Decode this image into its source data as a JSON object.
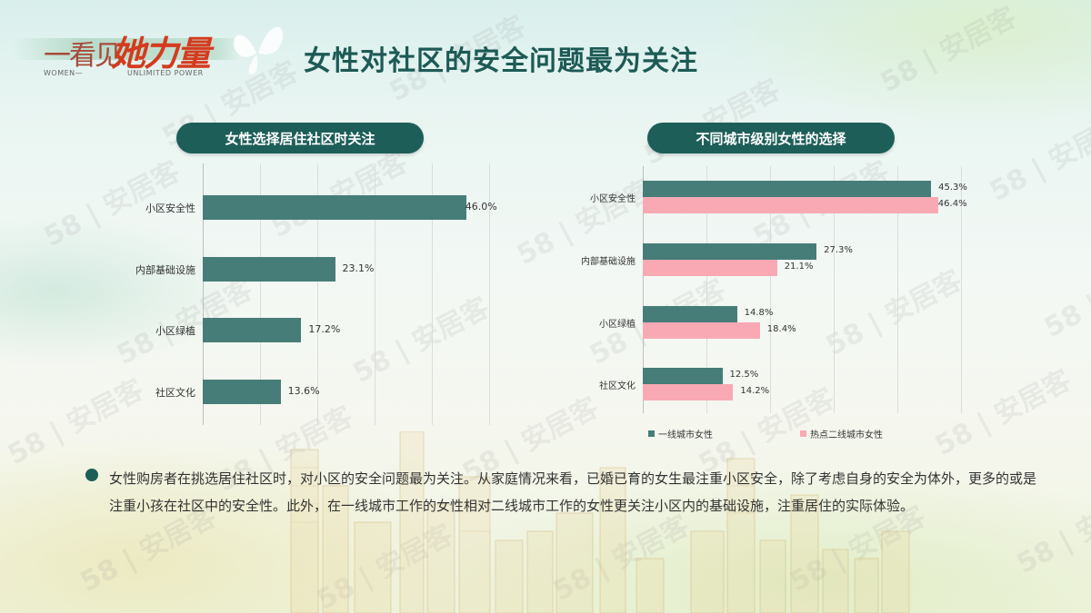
{
  "logo": {
    "main": "一看见",
    "accent": "她力量",
    "sub_left": "WOMEN—",
    "sub_right": "UNLIMITED POWER"
  },
  "page_title": "女性对社区的安全问题最为关注",
  "watermark": "58 | 安居客",
  "colors": {
    "primary": "#1d5e59",
    "series_teal": "#467d78",
    "series_pink": "#f9a9b4",
    "title": "#1d5a55"
  },
  "left_chart": {
    "title": "女性选择居住社区时关注",
    "categories": [
      "小区安全性",
      "内部基础设施",
      "小区绿植",
      "社区文化"
    ],
    "values": [
      46.0,
      23.1,
      17.2,
      13.6
    ],
    "value_labels": [
      "46.0%",
      "23.1%",
      "17.2%",
      "13.6%"
    ]
  },
  "right_chart": {
    "title": "不同城市级别女性的选择",
    "categories": [
      "小区安全性",
      "内部基础设施",
      "小区绿植",
      "社区文化"
    ],
    "series": [
      {
        "name": "一线城市女性",
        "values": [
          45.3,
          27.3,
          14.8,
          12.5
        ],
        "labels": [
          "45.3%",
          "27.3%",
          "14.8%",
          "12.5%"
        ]
      },
      {
        "name": "热点二线城市女性",
        "values": [
          46.4,
          21.1,
          18.4,
          14.2
        ],
        "labels": [
          "46.4%",
          "21.1%",
          "18.4%",
          "14.2%"
        ]
      }
    ]
  },
  "chart_data": [
    {
      "type": "bar",
      "orientation": "horizontal",
      "title": "女性选择居住社区时关注",
      "categories": [
        "小区安全性",
        "内部基础设施",
        "小区绿植",
        "社区文化"
      ],
      "values": [
        46.0,
        23.1,
        17.2,
        13.6
      ],
      "unit": "%",
      "xlim": [
        0,
        50
      ],
      "grid": true,
      "legend": null
    },
    {
      "type": "bar",
      "orientation": "horizontal",
      "title": "不同城市级别女性的选择",
      "categories": [
        "小区安全性",
        "内部基础设施",
        "小区绿植",
        "社区文化"
      ],
      "series": [
        {
          "name": "一线城市女性",
          "values": [
            45.3,
            27.3,
            14.8,
            12.5
          ]
        },
        {
          "name": "热点二线城市女性",
          "values": [
            46.4,
            21.1,
            18.4,
            14.2
          ]
        }
      ],
      "unit": "%",
      "xlim": [
        0,
        50
      ],
      "grid": true,
      "legend_position": "bottom"
    }
  ],
  "summary": "女性购房者在挑选居住社区时，对小区的安全问题最为关注。从家庭情况来看，已婚已育的女生最注重小区安全，除了考虑自身的安全为体外，更多的或是注重小孩在社区中的安全性。此外，在一线城市工作的女性相对二线城市工作的女性更关注小区内的基础设施，注重居住的实际体验。"
}
